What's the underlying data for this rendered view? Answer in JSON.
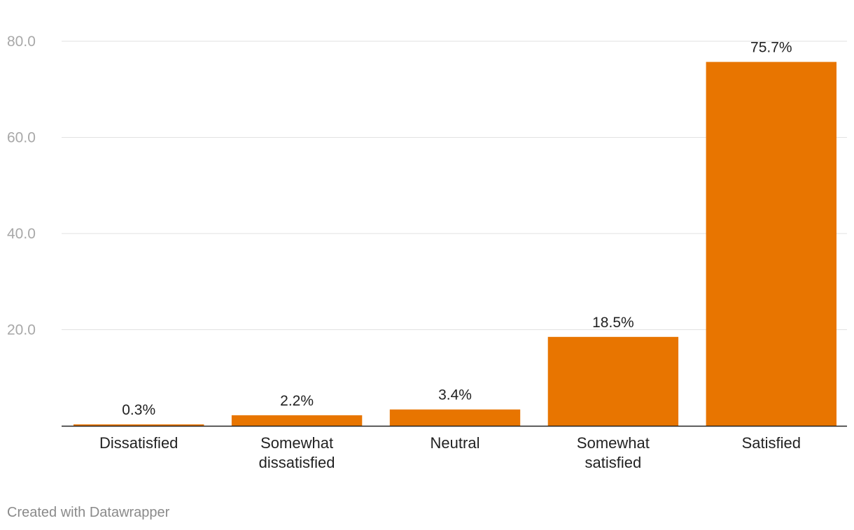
{
  "chart_data": {
    "type": "bar",
    "categories": [
      "Dissatisfied",
      "Somewhat dissatisfied",
      "Neutral",
      "Somewhat satisfied",
      "Satisfied"
    ],
    "category_lines": [
      [
        "Dissatisfied"
      ],
      [
        "Somewhat",
        "dissatisfied"
      ],
      [
        "Neutral"
      ],
      [
        "Somewhat",
        "satisfied"
      ],
      [
        "Satisfied"
      ]
    ],
    "values": [
      0.3,
      2.2,
      3.4,
      18.5,
      75.7
    ],
    "value_labels": [
      "0.3%",
      "2.2%",
      "3.4%",
      "18.5%",
      "75.7%"
    ],
    "yticks": [
      20,
      40,
      60,
      80
    ],
    "ytick_labels": [
      "20.0",
      "40.0",
      "60.0",
      "80.0"
    ],
    "ylim": [
      0,
      80
    ],
    "grid": true,
    "bar_color": "#e87500",
    "title": "",
    "xlabel": "",
    "ylabel": ""
  },
  "footer": {
    "credit": "Created with Datawrapper"
  }
}
